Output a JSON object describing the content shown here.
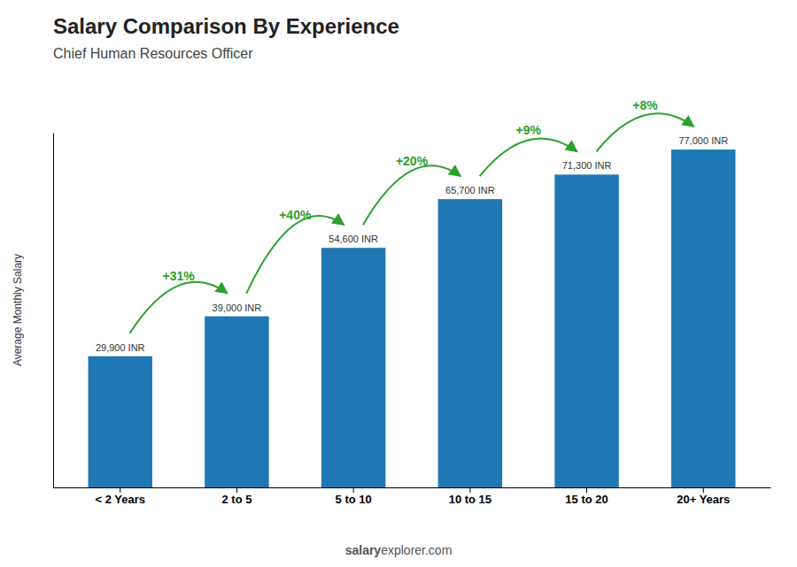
{
  "chart_data": {
    "type": "bar",
    "title": "Salary Comparison By Experience",
    "subtitle": "Chief Human Resources Officer",
    "categories": [
      "< 2 Years",
      "2 to 5",
      "5 to 10",
      "10 to 15",
      "15 to 20",
      "20+ Years"
    ],
    "values": [
      29900,
      39000,
      54600,
      65700,
      71300,
      77000
    ],
    "value_labels": [
      "29,900 INR",
      "39,000 INR",
      "54,600 INR",
      "65,700 INR",
      "71,300 INR",
      "77,000 INR"
    ],
    "data_labels": true,
    "ylabel": "Average Monthly Salary",
    "ylim": [
      0,
      80850
    ],
    "tick_labels": "x",
    "grid": false,
    "annotations": [
      "+31%",
      "+40%",
      "+20%",
      "+9%",
      "+8%"
    ],
    "footer": [
      "salary",
      "explorer",
      ".com"
    ]
  }
}
